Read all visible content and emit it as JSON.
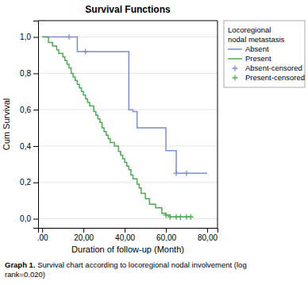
{
  "chart_data": {
    "type": "line",
    "title": "Survival Functions",
    "x_label": "Duration of follow-up (Month)",
    "y_label": "Cum Survival",
    "xlim": [
      -2,
      85
    ],
    "ylim": [
      -0.05,
      1.09
    ],
    "xticks": [
      {
        "value": 0,
        "label": ".00"
      },
      {
        "value": 20,
        "label": "20,00"
      },
      {
        "value": 40,
        "label": "40,00"
      },
      {
        "value": 60,
        "label": "60,00"
      },
      {
        "value": 80,
        "label": "80,00"
      }
    ],
    "yticks": [
      {
        "value": 0.0,
        "label": "0,0"
      },
      {
        "value": 0.2,
        "label": "0,2"
      },
      {
        "value": 0.4,
        "label": "0,4"
      },
      {
        "value": 0.6,
        "label": "0,6"
      },
      {
        "value": 0.8,
        "label": "0,8"
      },
      {
        "value": 1.0,
        "label": "1,0"
      }
    ],
    "grid": "y",
    "legend": "right",
    "legend_title": "Locoregional\nnodal metastasis",
    "annotations": [
      "Graph 1.",
      " Survival chart according to locoregional nodal involvement (log\nrank=0.020)"
    ],
    "series": [
      {
        "name": "Absent",
        "type": "step",
        "color": "#7b8fd4",
        "x": [
          0,
          13,
          14,
          17,
          21,
          42,
          44,
          46,
          60,
          65,
          70,
          80
        ],
        "values": [
          1.0,
          1.0,
          1.0,
          0.92,
          0.92,
          0.6,
          0.59,
          0.5,
          0.375,
          0.25,
          0.25,
          0.25
        ]
      },
      {
        "name": "Present",
        "type": "step",
        "color": "#4aad52",
        "x": [
          0,
          3,
          5,
          7,
          8,
          10,
          11,
          12,
          13,
          14,
          15,
          16,
          17,
          18,
          19,
          20,
          21,
          22,
          23,
          25,
          26,
          27,
          28,
          29,
          30,
          31,
          32,
          33,
          35,
          37,
          38,
          39,
          40,
          41,
          42,
          43,
          44,
          46,
          47,
          48,
          50,
          52,
          55,
          58,
          60,
          62,
          65,
          67,
          70,
          72
        ],
        "values": [
          1.0,
          0.97,
          0.95,
          0.93,
          0.91,
          0.89,
          0.87,
          0.85,
          0.83,
          0.8,
          0.78,
          0.76,
          0.74,
          0.72,
          0.7,
          0.68,
          0.66,
          0.64,
          0.62,
          0.59,
          0.57,
          0.55,
          0.53,
          0.5,
          0.48,
          0.46,
          0.44,
          0.42,
          0.4,
          0.37,
          0.35,
          0.33,
          0.31,
          0.29,
          0.27,
          0.24,
          0.22,
          0.19,
          0.17,
          0.14,
          0.11,
          0.08,
          0.06,
          0.03,
          0.02,
          0.01,
          0.01,
          0.01,
          0.01,
          0.01
        ]
      },
      {
        "name": "Absent-censored",
        "type": "scatter",
        "marker": "plus",
        "color": "#7b8fd4",
        "x": [
          13,
          21,
          65,
          70
        ],
        "values": [
          1.0,
          0.92,
          0.25,
          0.25
        ]
      },
      {
        "name": "Present-censored",
        "type": "scatter",
        "marker": "plus",
        "color": "#4aad52",
        "x": [
          60,
          62,
          65,
          67,
          70,
          72
        ],
        "values": [
          0.02,
          0.01,
          0.01,
          0.01,
          0.01,
          0.01
        ]
      }
    ]
  }
}
